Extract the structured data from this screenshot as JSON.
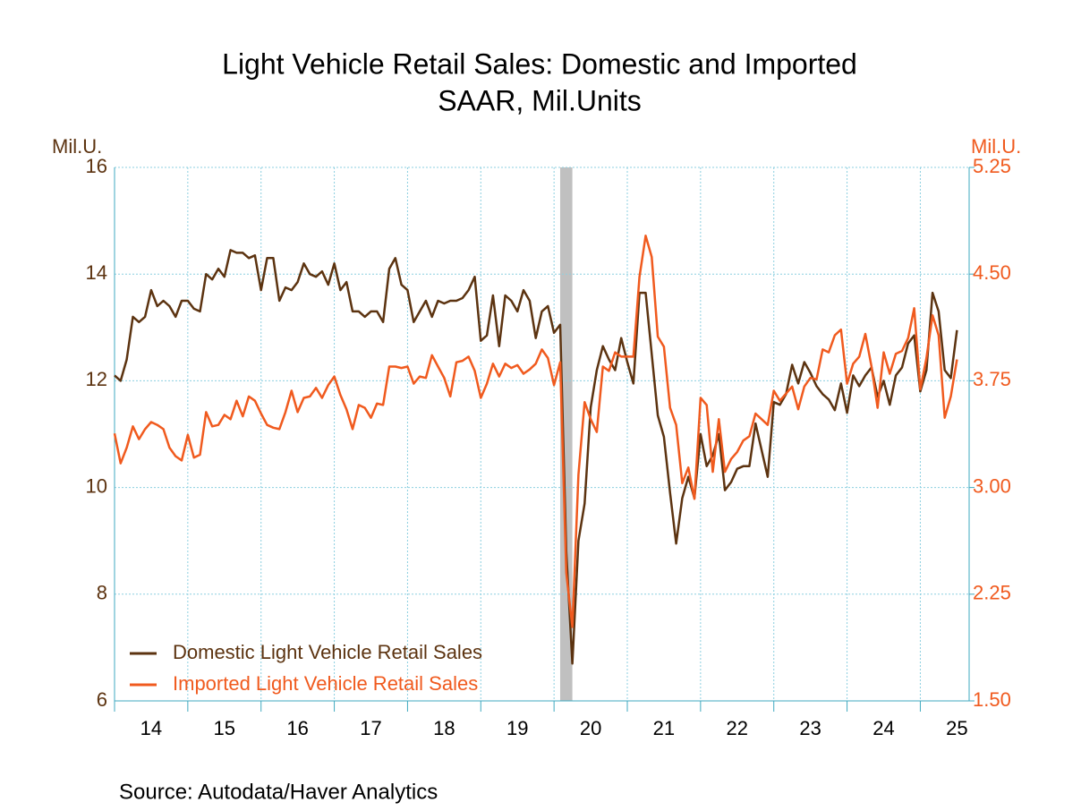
{
  "chart_data": {
    "type": "line",
    "title": "Light Vehicle Retail Sales: Domestic and Imported",
    "subtitle": "SAAR, Mil.Units",
    "y_axis_label": "Mil.U.",
    "y2_axis_label": "Mil.U.",
    "source": "Source:  Autodata/Haver Analytics",
    "x": [
      "2014-01",
      "2014-02",
      "2014-03",
      "2014-04",
      "2014-05",
      "2014-06",
      "2014-07",
      "2014-08",
      "2014-09",
      "2014-10",
      "2014-11",
      "2014-12",
      "2015-01",
      "2015-02",
      "2015-03",
      "2015-04",
      "2015-05",
      "2015-06",
      "2015-07",
      "2015-08",
      "2015-09",
      "2015-10",
      "2015-11",
      "2015-12",
      "2016-01",
      "2016-02",
      "2016-03",
      "2016-04",
      "2016-05",
      "2016-06",
      "2016-07",
      "2016-08",
      "2016-09",
      "2016-10",
      "2016-11",
      "2016-12",
      "2017-01",
      "2017-02",
      "2017-03",
      "2017-04",
      "2017-05",
      "2017-06",
      "2017-07",
      "2017-08",
      "2017-09",
      "2017-10",
      "2017-11",
      "2017-12",
      "2018-01",
      "2018-02",
      "2018-03",
      "2018-04",
      "2018-05",
      "2018-06",
      "2018-07",
      "2018-08",
      "2018-09",
      "2018-10",
      "2018-11",
      "2018-12",
      "2019-01",
      "2019-02",
      "2019-03",
      "2019-04",
      "2019-05",
      "2019-06",
      "2019-07",
      "2019-08",
      "2019-09",
      "2019-10",
      "2019-11",
      "2019-12",
      "2020-01",
      "2020-02",
      "2020-03",
      "2020-04",
      "2020-05",
      "2020-06",
      "2020-07",
      "2020-08",
      "2020-09",
      "2020-10",
      "2020-11",
      "2020-12",
      "2021-01",
      "2021-02",
      "2021-03",
      "2021-04",
      "2021-05",
      "2021-06",
      "2021-07",
      "2021-08",
      "2021-09",
      "2021-10",
      "2021-11",
      "2021-12",
      "2022-01",
      "2022-02",
      "2022-03",
      "2022-04",
      "2022-05",
      "2022-06",
      "2022-07",
      "2022-08",
      "2022-09",
      "2022-10",
      "2022-11",
      "2022-12",
      "2023-01",
      "2023-02",
      "2023-03",
      "2023-04",
      "2023-05",
      "2023-06",
      "2023-07",
      "2023-08",
      "2023-09",
      "2023-10",
      "2023-11",
      "2023-12",
      "2024-01",
      "2024-02",
      "2024-03",
      "2024-04",
      "2024-05",
      "2024-06",
      "2024-07",
      "2024-08",
      "2024-09",
      "2024-10",
      "2024-11",
      "2024-12",
      "2025-01",
      "2025-02",
      "2025-03",
      "2025-04",
      "2025-05",
      "2025-06",
      "2025-07"
    ],
    "xlim": [
      "2014-01",
      "2025-09"
    ],
    "xticks": [
      {
        "value": 2014,
        "label": "14"
      },
      {
        "value": 2015,
        "label": "15"
      },
      {
        "value": 2016,
        "label": "16"
      },
      {
        "value": 2017,
        "label": "17"
      },
      {
        "value": 2018,
        "label": "18"
      },
      {
        "value": 2019,
        "label": "19"
      },
      {
        "value": 2020,
        "label": "20"
      },
      {
        "value": 2021,
        "label": "21"
      },
      {
        "value": 2022,
        "label": "22"
      },
      {
        "value": 2023,
        "label": "23"
      },
      {
        "value": 2024,
        "label": "24"
      },
      {
        "value": 2025,
        "label": "25"
      }
    ],
    "ylim": [
      6,
      16
    ],
    "yticks": [
      6,
      8,
      10,
      12,
      14,
      16
    ],
    "y2lim": [
      1.5,
      5.25
    ],
    "y2ticks": [
      {
        "value": 1.5,
        "label": "1.50"
      },
      {
        "value": 2.25,
        "label": "2.25"
      },
      {
        "value": 3,
        "label": "3.00"
      },
      {
        "value": 3.75,
        "label": "3.75"
      },
      {
        "value": 4.5,
        "label": "4.50"
      },
      {
        "value": 5.25,
        "label": "5.25"
      }
    ],
    "grid": true,
    "legend": "lower left",
    "shaded": {
      "from": "2020-02",
      "to": "2020-04",
      "color": "#c0c0c0"
    },
    "series": [
      {
        "name": "Domestic Light Vehicle Retail Sales",
        "color": "#5c3310",
        "axis": "y",
        "values": [
          12.1,
          12.0,
          12.4,
          13.2,
          13.1,
          13.2,
          13.7,
          13.4,
          13.5,
          13.4,
          13.2,
          13.5,
          13.5,
          13.35,
          13.3,
          14.0,
          13.9,
          14.1,
          13.95,
          14.45,
          14.4,
          14.4,
          14.3,
          14.35,
          13.7,
          14.3,
          14.3,
          13.5,
          13.75,
          13.7,
          13.85,
          14.2,
          14.0,
          13.95,
          14.05,
          13.8,
          14.2,
          13.7,
          13.85,
          13.3,
          13.3,
          13.2,
          13.3,
          13.3,
          13.1,
          14.1,
          14.3,
          13.8,
          13.7,
          13.1,
          13.3,
          13.5,
          13.2,
          13.5,
          13.45,
          13.5,
          13.5,
          13.55,
          13.7,
          13.95,
          12.75,
          12.85,
          13.6,
          12.65,
          13.6,
          13.5,
          13.3,
          13.7,
          13.5,
          12.8,
          13.3,
          13.4,
          12.9,
          13.05,
          8.8,
          6.7,
          9.0,
          9.7,
          11.5,
          12.2,
          12.65,
          12.4,
          12.2,
          12.8,
          12.35,
          11.95,
          13.65,
          13.65,
          12.5,
          11.35,
          10.95,
          9.9,
          8.95,
          9.8,
          10.2,
          9.8,
          11.0,
          10.4,
          10.6,
          11.0,
          9.95,
          10.1,
          10.35,
          10.4,
          10.4,
          11.2,
          10.7,
          10.2,
          11.6,
          11.55,
          11.75,
          12.3,
          11.95,
          12.35,
          12.15,
          11.9,
          11.75,
          11.65,
          11.45,
          11.95,
          11.4,
          12.1,
          11.9,
          12.1,
          12.25,
          11.7,
          12.0,
          11.55,
          12.1,
          12.25,
          12.7,
          12.85,
          11.8,
          12.2,
          13.65,
          13.3,
          12.2,
          12.05,
          12.95
        ]
      },
      {
        "name": "Imported Light Vehicle Retail Sales",
        "color": "#f05a1e",
        "axis": "y2",
        "values": [
          3.38,
          3.17,
          3.28,
          3.43,
          3.34,
          3.41,
          3.46,
          3.44,
          3.41,
          3.28,
          3.22,
          3.19,
          3.37,
          3.21,
          3.23,
          3.53,
          3.43,
          3.44,
          3.51,
          3.48,
          3.61,
          3.5,
          3.64,
          3.61,
          3.52,
          3.44,
          3.42,
          3.41,
          3.53,
          3.68,
          3.53,
          3.63,
          3.64,
          3.7,
          3.63,
          3.72,
          3.78,
          3.65,
          3.55,
          3.41,
          3.58,
          3.56,
          3.49,
          3.59,
          3.58,
          3.85,
          3.85,
          3.84,
          3.85,
          3.73,
          3.78,
          3.77,
          3.93,
          3.85,
          3.77,
          3.64,
          3.88,
          3.89,
          3.92,
          3.82,
          3.63,
          3.73,
          3.87,
          3.78,
          3.87,
          3.84,
          3.86,
          3.8,
          3.83,
          3.87,
          3.97,
          3.91,
          3.72,
          3.88,
          2.4,
          2.02,
          3.09,
          3.6,
          3.48,
          3.39,
          3.85,
          3.82,
          3.95,
          3.92,
          3.92,
          3.92,
          4.48,
          4.77,
          4.62,
          4.06,
          3.99,
          3.56,
          3.44,
          3.03,
          3.14,
          2.92,
          3.63,
          3.58,
          3.11,
          3.48,
          3.11,
          3.2,
          3.25,
          3.33,
          3.36,
          3.52,
          3.48,
          3.44,
          3.68,
          3.61,
          3.66,
          3.71,
          3.55,
          3.71,
          3.77,
          3.76,
          3.97,
          3.95,
          4.07,
          4.11,
          3.73,
          3.87,
          3.92,
          4.08,
          3.85,
          3.56,
          3.95,
          3.8,
          3.94,
          3.96,
          4.05,
          4.26,
          3.69,
          3.91,
          4.21,
          4.07,
          3.49,
          3.64,
          3.9
        ]
      }
    ]
  }
}
